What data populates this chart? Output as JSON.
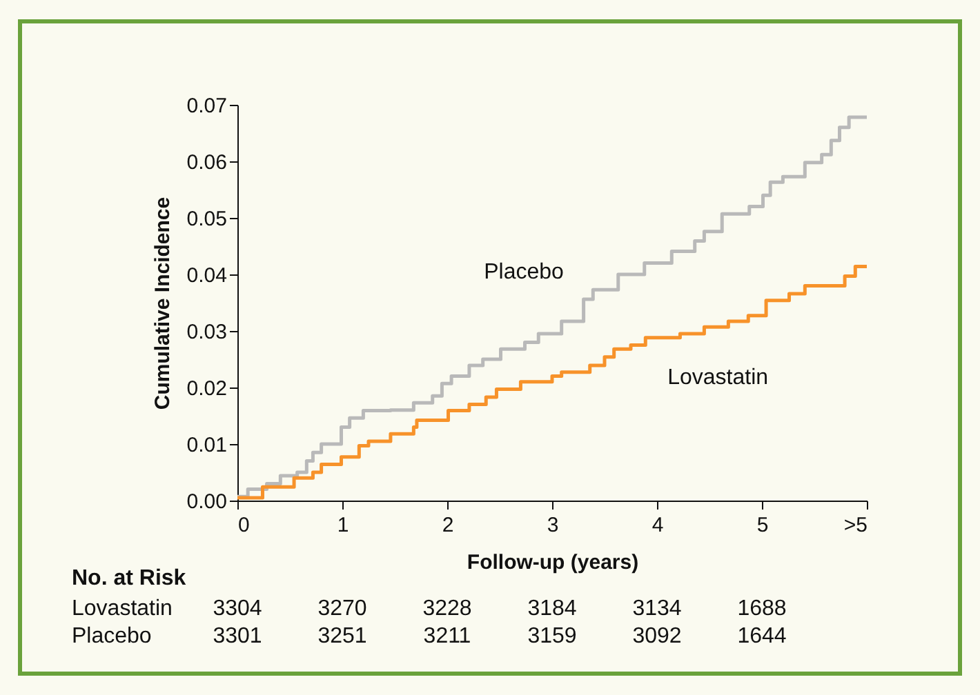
{
  "chart_data": {
    "type": "step",
    "xlabel": "Follow-up (years)",
    "ylabel": "Cumulative Incidence",
    "xlim": [
      0,
      6
    ],
    "ylim": [
      0,
      0.07
    ],
    "xticks": [
      0,
      1,
      2,
      3,
      4,
      5,
      {
        "value": 6,
        "label": ">5"
      }
    ],
    "yticks": [
      {
        "value": 0,
        "label": "0.00"
      },
      {
        "value": 0.01,
        "label": "0.01"
      },
      {
        "value": 0.02,
        "label": "0.02"
      },
      {
        "value": 0.03,
        "label": "0.03"
      },
      {
        "value": 0.04,
        "label": "0.04"
      },
      {
        "value": 0.05,
        "label": "0.05"
      },
      {
        "value": 0.06,
        "label": "0.06"
      },
      {
        "value": 0.07,
        "label": "0.07"
      }
    ],
    "series": [
      {
        "name": "Placebo",
        "color": "#b9b9b9",
        "x": [
          0,
          0.1,
          0.28,
          0.41,
          0.57,
          0.66,
          0.72,
          0.8,
          0.99,
          1.07,
          1.2,
          1.46,
          1.68,
          1.86,
          1.95,
          2.04,
          2.21,
          2.34,
          2.51,
          2.74,
          2.87,
          3.09,
          3.3,
          3.39,
          3.63,
          3.88,
          4.14,
          4.36,
          4.45,
          4.62,
          4.88,
          5.01,
          5.08,
          5.2,
          5.41,
          5.57,
          5.66,
          5.74,
          5.83,
          6.0
        ],
        "values": [
          0.0007,
          0.002,
          0.003,
          0.0044,
          0.005,
          0.007,
          0.0085,
          0.01,
          0.013,
          0.0146,
          0.0159,
          0.016,
          0.0173,
          0.0185,
          0.0207,
          0.022,
          0.0239,
          0.025,
          0.0268,
          0.028,
          0.0295,
          0.0317,
          0.0356,
          0.0373,
          0.04,
          0.042,
          0.0441,
          0.0459,
          0.0476,
          0.0507,
          0.052,
          0.054,
          0.0563,
          0.0573,
          0.0598,
          0.0612,
          0.0637,
          0.066,
          0.0678,
          0.0678
        ]
      },
      {
        "name": "Lovastatin",
        "color": "#f7922a",
        "x": [
          0,
          0.24,
          0.54,
          0.72,
          0.8,
          0.99,
          1.16,
          1.25,
          1.46,
          1.68,
          1.71,
          2.01,
          2.21,
          2.37,
          2.47,
          2.7,
          3.0,
          3.09,
          3.36,
          3.5,
          3.59,
          3.75,
          3.89,
          4.22,
          4.45,
          4.68,
          4.87,
          5.04,
          5.26,
          5.41,
          5.79,
          5.89,
          6.0
        ],
        "values": [
          0.0005,
          0.0024,
          0.004,
          0.005,
          0.0064,
          0.0077,
          0.0097,
          0.0105,
          0.0118,
          0.013,
          0.0142,
          0.0159,
          0.017,
          0.0183,
          0.0197,
          0.021,
          0.022,
          0.0227,
          0.0239,
          0.0254,
          0.0268,
          0.0275,
          0.0288,
          0.0295,
          0.0307,
          0.0317,
          0.0327,
          0.0354,
          0.0366,
          0.038,
          0.0397,
          0.0414,
          0.0414
        ]
      }
    ],
    "annotations": [
      "No. at Risk",
      "Lovastatin 3304 3270 3228 3184 3134 1688",
      "Placebo 3301 3251 3211 3159 3092 1644"
    ]
  }
}
